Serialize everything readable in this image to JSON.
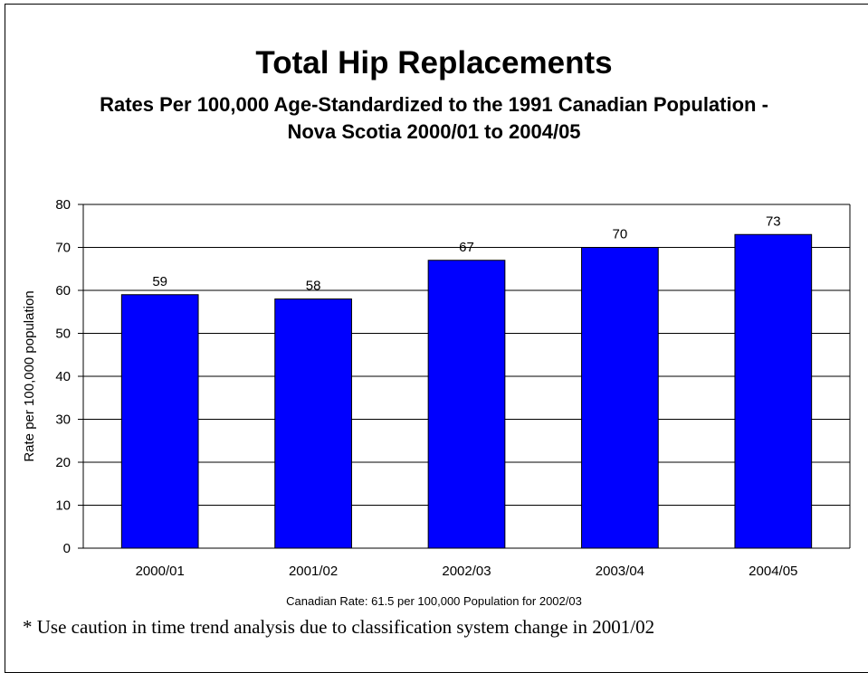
{
  "title": "Total Hip Replacements",
  "subtitle_line1": "Rates Per 100,000 Age-Standardized to the 1991 Canadian Population -",
  "subtitle_line2": "Nova Scotia 2000/01 to 2004/05",
  "note": "Canadian Rate: 61.5 per 100,000 Population for 2002/03",
  "footnote": "* Use caution in time trend analysis due to classification system change in 2001/02",
  "colors": {
    "bar": "#0000ff",
    "bar_outline": "#000000",
    "grid": "#000000"
  },
  "chart_data": {
    "type": "bar",
    "title": "Total Hip Replacements",
    "subtitle": "Rates Per 100,000 Age-Standardized to the 1991 Canadian Population - Nova Scotia 2000/01 to 2004/05",
    "xlabel": "",
    "ylabel": "Rate per 100,000 population",
    "categories": [
      "2000/01",
      "2001/02",
      "2002/03",
      "2003/04",
      "2004/05"
    ],
    "values": [
      59,
      58,
      67,
      70,
      73
    ],
    "data_labels": [
      "59",
      "58",
      "67",
      "70",
      "73"
    ],
    "ylim": [
      0,
      80
    ],
    "yticks": [
      0,
      10,
      20,
      30,
      40,
      50,
      60,
      70,
      80
    ],
    "grid": true,
    "legend": "none"
  }
}
